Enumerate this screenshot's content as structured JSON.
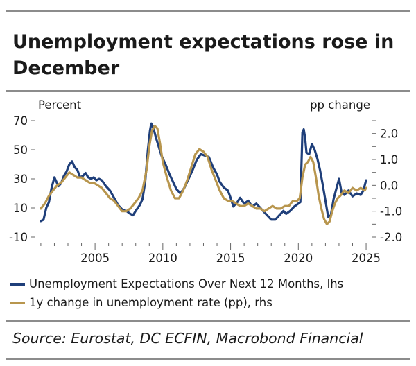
{
  "title": "Unemployment expectations rose in December",
  "chart_data": {
    "type": "line",
    "left_axis_label": "Percent",
    "right_axis_label": "pp change",
    "left_ylim": [
      -10,
      70
    ],
    "left_ticks": [
      -10,
      10,
      30,
      50,
      70
    ],
    "left_tick_labels": [
      "-10",
      "10",
      "30",
      "50",
      "70"
    ],
    "right_ylim": [
      -2.0,
      2.5
    ],
    "right_ticks": [
      -2.0,
      -1.0,
      0.0,
      1.0,
      2.0
    ],
    "right_tick_labels": [
      "-2.0",
      "-1.0",
      "0.0",
      "1.0",
      "2.0"
    ],
    "xlim": [
      2000.8,
      2025.1
    ],
    "x_ticks": [
      2005,
      2010,
      2015,
      2020,
      2025
    ],
    "x_tick_labels": [
      "2005",
      "2010",
      "2015",
      "2020",
      "2025"
    ],
    "series": [
      {
        "name": "Unemployment Expectations Over Next 12 Months, lhs",
        "axis": "left",
        "color": "#1f3f7a",
        "points": [
          [
            2001.0,
            1
          ],
          [
            2001.2,
            2
          ],
          [
            2001.4,
            10
          ],
          [
            2001.6,
            14
          ],
          [
            2001.8,
            24
          ],
          [
            2002.0,
            31
          ],
          [
            2002.1,
            29
          ],
          [
            2002.3,
            25
          ],
          [
            2002.5,
            27
          ],
          [
            2002.7,
            32
          ],
          [
            2002.9,
            35
          ],
          [
            2003.1,
            40
          ],
          [
            2003.3,
            42
          ],
          [
            2003.5,
            38
          ],
          [
            2003.7,
            36
          ],
          [
            2003.9,
            31
          ],
          [
            2004.1,
            32
          ],
          [
            2004.3,
            34
          ],
          [
            2004.5,
            31
          ],
          [
            2004.7,
            30
          ],
          [
            2004.9,
            31
          ],
          [
            2005.1,
            29
          ],
          [
            2005.3,
            30
          ],
          [
            2005.5,
            29
          ],
          [
            2005.8,
            25
          ],
          [
            2006.1,
            22
          ],
          [
            2006.4,
            17
          ],
          [
            2006.7,
            12
          ],
          [
            2007.0,
            9
          ],
          [
            2007.3,
            8
          ],
          [
            2007.6,
            6
          ],
          [
            2007.8,
            5
          ],
          [
            2008.0,
            8
          ],
          [
            2008.3,
            12
          ],
          [
            2008.5,
            16
          ],
          [
            2008.7,
            28
          ],
          [
            2008.9,
            50
          ],
          [
            2009.05,
            63
          ],
          [
            2009.15,
            68
          ],
          [
            2009.3,
            65
          ],
          [
            2009.5,
            58
          ],
          [
            2009.7,
            52
          ],
          [
            2009.9,
            46
          ],
          [
            2010.2,
            40
          ],
          [
            2010.5,
            33
          ],
          [
            2010.8,
            27
          ],
          [
            2011.0,
            23
          ],
          [
            2011.3,
            20
          ],
          [
            2011.6,
            24
          ],
          [
            2011.9,
            30
          ],
          [
            2012.2,
            36
          ],
          [
            2012.5,
            43
          ],
          [
            2012.8,
            47
          ],
          [
            2013.1,
            46
          ],
          [
            2013.4,
            45
          ],
          [
            2013.7,
            38
          ],
          [
            2014.0,
            33
          ],
          [
            2014.2,
            28
          ],
          [
            2014.5,
            24
          ],
          [
            2014.8,
            22
          ],
          [
            2015.0,
            17
          ],
          [
            2015.2,
            11
          ],
          [
            2015.5,
            14
          ],
          [
            2015.7,
            17
          ],
          [
            2016.0,
            13
          ],
          [
            2016.3,
            15
          ],
          [
            2016.6,
            11
          ],
          [
            2016.9,
            13
          ],
          [
            2017.2,
            10
          ],
          [
            2017.5,
            7
          ],
          [
            2017.8,
            4
          ],
          [
            2018.0,
            2
          ],
          [
            2018.3,
            2
          ],
          [
            2018.6,
            5
          ],
          [
            2018.9,
            8
          ],
          [
            2019.1,
            6
          ],
          [
            2019.4,
            8
          ],
          [
            2019.7,
            11
          ],
          [
            2020.0,
            13
          ],
          [
            2020.15,
            14
          ],
          [
            2020.3,
            62
          ],
          [
            2020.4,
            64
          ],
          [
            2020.5,
            58
          ],
          [
            2020.6,
            48
          ],
          [
            2020.8,
            47
          ],
          [
            2021.0,
            54
          ],
          [
            2021.2,
            50
          ],
          [
            2021.4,
            44
          ],
          [
            2021.6,
            36
          ],
          [
            2021.8,
            26
          ],
          [
            2022.0,
            15
          ],
          [
            2022.2,
            4
          ],
          [
            2022.4,
            5
          ],
          [
            2022.6,
            16
          ],
          [
            2022.8,
            23
          ],
          [
            2023.0,
            30
          ],
          [
            2023.2,
            20
          ],
          [
            2023.4,
            19
          ],
          [
            2023.7,
            22
          ],
          [
            2024.0,
            18
          ],
          [
            2024.3,
            20
          ],
          [
            2024.6,
            19
          ],
          [
            2024.8,
            22
          ],
          [
            2025.0,
            29
          ]
        ]
      },
      {
        "name": "1y change in unemployment rate (pp), rhs",
        "axis": "right",
        "color": "#b8964e",
        "points": [
          [
            2001.0,
            -0.9
          ],
          [
            2001.3,
            -0.7
          ],
          [
            2001.6,
            -0.4
          ],
          [
            2001.9,
            -0.2
          ],
          [
            2002.2,
            0.0
          ],
          [
            2002.5,
            0.1
          ],
          [
            2002.8,
            0.3
          ],
          [
            2003.1,
            0.5
          ],
          [
            2003.4,
            0.4
          ],
          [
            2003.7,
            0.3
          ],
          [
            2004.0,
            0.3
          ],
          [
            2004.3,
            0.2
          ],
          [
            2004.6,
            0.1
          ],
          [
            2004.9,
            0.1
          ],
          [
            2005.2,
            0.0
          ],
          [
            2005.5,
            -0.1
          ],
          [
            2005.8,
            -0.3
          ],
          [
            2006.1,
            -0.5
          ],
          [
            2006.4,
            -0.6
          ],
          [
            2006.7,
            -0.8
          ],
          [
            2007.0,
            -1.0
          ],
          [
            2007.3,
            -1.0
          ],
          [
            2007.6,
            -0.9
          ],
          [
            2007.9,
            -0.7
          ],
          [
            2008.2,
            -0.5
          ],
          [
            2008.5,
            -0.2
          ],
          [
            2008.8,
            0.6
          ],
          [
            2009.0,
            1.5
          ],
          [
            2009.2,
            2.1
          ],
          [
            2009.4,
            2.3
          ],
          [
            2009.6,
            2.2
          ],
          [
            2009.8,
            1.6
          ],
          [
            2010.0,
            0.9
          ],
          [
            2010.3,
            0.3
          ],
          [
            2010.6,
            -0.2
          ],
          [
            2010.9,
            -0.5
          ],
          [
            2011.2,
            -0.5
          ],
          [
            2011.5,
            -0.2
          ],
          [
            2011.8,
            0.2
          ],
          [
            2012.1,
            0.7
          ],
          [
            2012.4,
            1.2
          ],
          [
            2012.7,
            1.4
          ],
          [
            2013.0,
            1.3
          ],
          [
            2013.3,
            1.1
          ],
          [
            2013.6,
            0.6
          ],
          [
            2013.9,
            0.2
          ],
          [
            2014.2,
            -0.2
          ],
          [
            2014.5,
            -0.5
          ],
          [
            2014.8,
            -0.6
          ],
          [
            2015.1,
            -0.6
          ],
          [
            2015.4,
            -0.7
          ],
          [
            2015.7,
            -0.8
          ],
          [
            2016.0,
            -0.8
          ],
          [
            2016.3,
            -0.7
          ],
          [
            2016.6,
            -0.8
          ],
          [
            2016.9,
            -0.9
          ],
          [
            2017.2,
            -0.9
          ],
          [
            2017.5,
            -1.0
          ],
          [
            2017.8,
            -0.9
          ],
          [
            2018.1,
            -0.8
          ],
          [
            2018.4,
            -0.9
          ],
          [
            2018.7,
            -0.9
          ],
          [
            2019.0,
            -0.8
          ],
          [
            2019.3,
            -0.8
          ],
          [
            2019.6,
            -0.6
          ],
          [
            2019.9,
            -0.6
          ],
          [
            2020.1,
            -0.5
          ],
          [
            2020.3,
            0.3
          ],
          [
            2020.5,
            0.8
          ],
          [
            2020.7,
            0.9
          ],
          [
            2020.9,
            1.1
          ],
          [
            2021.1,
            0.9
          ],
          [
            2021.3,
            0.3
          ],
          [
            2021.5,
            -0.4
          ],
          [
            2021.7,
            -0.9
          ],
          [
            2021.9,
            -1.3
          ],
          [
            2022.1,
            -1.5
          ],
          [
            2022.3,
            -1.4
          ],
          [
            2022.5,
            -1.0
          ],
          [
            2022.7,
            -0.7
          ],
          [
            2022.9,
            -0.5
          ],
          [
            2023.1,
            -0.4
          ],
          [
            2023.4,
            -0.2
          ],
          [
            2023.7,
            -0.3
          ],
          [
            2024.0,
            -0.1
          ],
          [
            2024.3,
            -0.2
          ],
          [
            2024.6,
            -0.1
          ],
          [
            2024.9,
            -0.2
          ],
          [
            2025.0,
            -0.1
          ]
        ]
      }
    ]
  },
  "legend": {
    "items": [
      {
        "label": "Unemployment Expectations Over Next 12 Months, lhs",
        "color": "#1f3f7a"
      },
      {
        "label": "1y change in unemployment rate (pp), rhs",
        "color": "#b8964e"
      }
    ]
  },
  "source": "Source: Eurostat, DC ECFIN, Macrobond Financial"
}
